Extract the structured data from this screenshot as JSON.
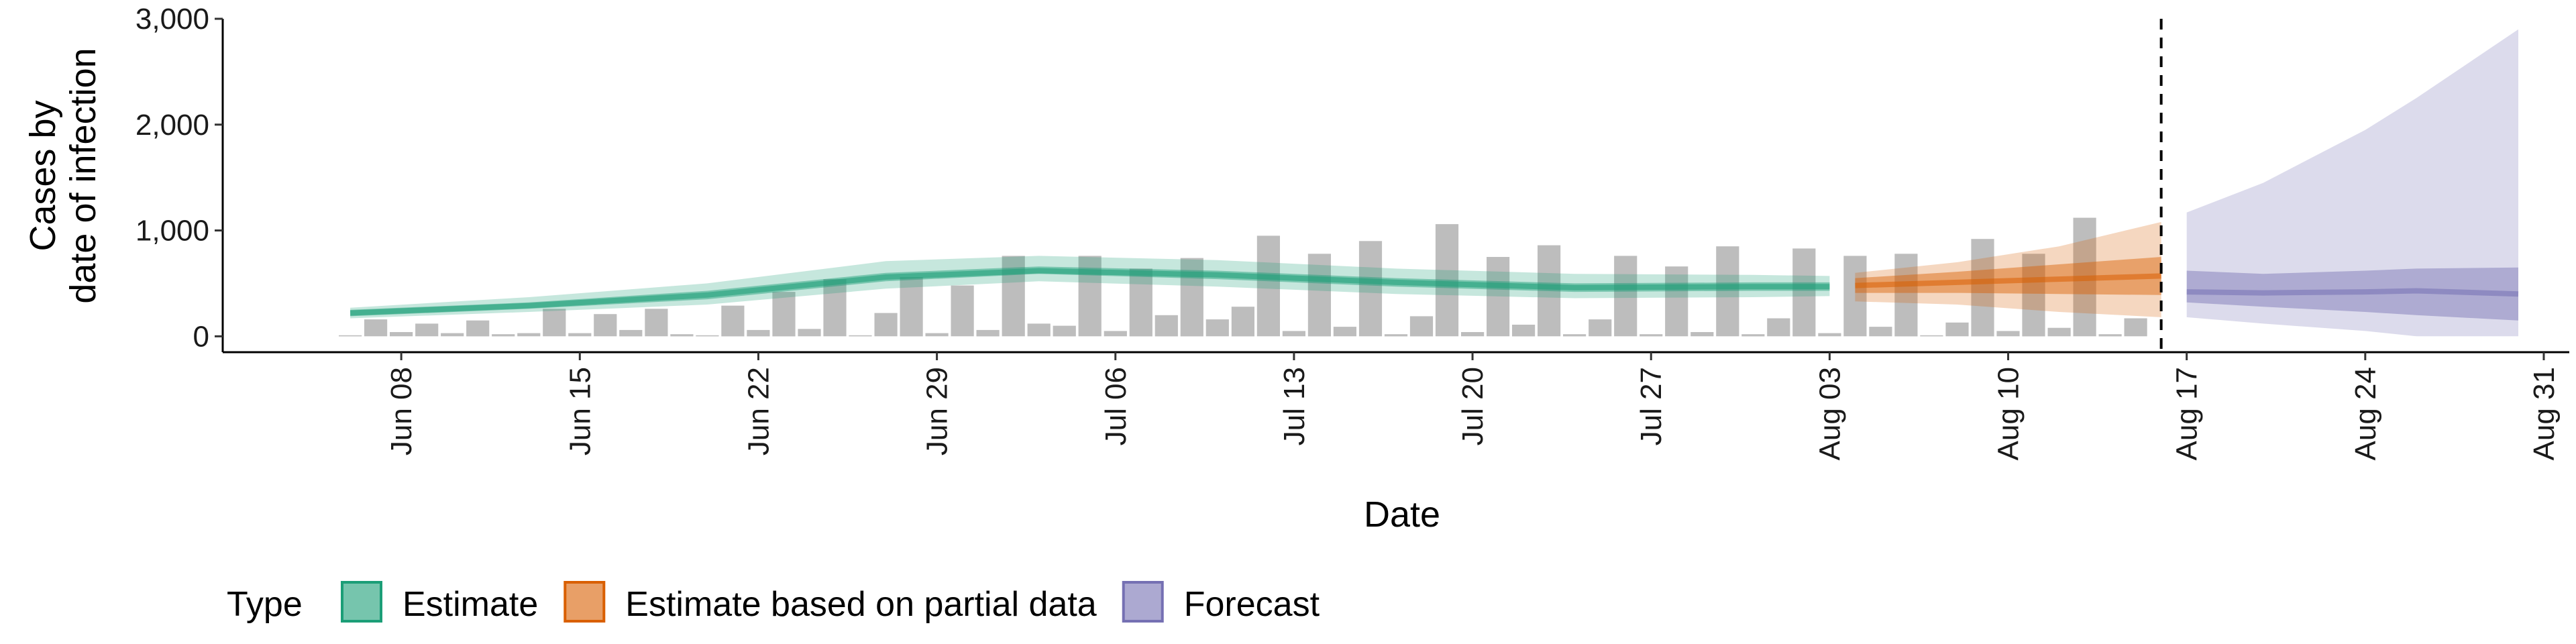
{
  "chart_data": {
    "type": "bar+area",
    "xlabel": "Date",
    "ylabel_lines": [
      "Cases by",
      "date of infection"
    ],
    "ylim": [
      -150,
      3000
    ],
    "yticks": [
      0,
      1000,
      2000,
      3000
    ],
    "ytick_labels": [
      "0",
      "1,000",
      "2,000",
      "3,000"
    ],
    "xlim": [
      "2020-06-01",
      "2020-09-01"
    ],
    "xticks": [
      "2020-06-08",
      "2020-06-15",
      "2020-06-22",
      "2020-06-29",
      "2020-07-06",
      "2020-07-13",
      "2020-07-20",
      "2020-07-27",
      "2020-08-03",
      "2020-08-10",
      "2020-08-17",
      "2020-08-24",
      "2020-08-31"
    ],
    "xtick_labels": [
      "Jun 08",
      "Jun 15",
      "Jun 22",
      "Jun 29",
      "Jul 06",
      "Jul 13",
      "Jul 20",
      "Jul 27",
      "Aug 03",
      "Aug 10",
      "Aug 17",
      "Aug 24",
      "Aug 31"
    ],
    "forecast_cutoff": "2020-08-16",
    "bar_color": "#bdbdbd",
    "reported_cases": {
      "start_date": "2020-06-06",
      "values": [
        10,
        160,
        40,
        120,
        30,
        150,
        20,
        30,
        260,
        30,
        210,
        60,
        260,
        20,
        10,
        290,
        60,
        420,
        70,
        540,
        10,
        220,
        560,
        30,
        480,
        60,
        760,
        120,
        100,
        760,
        50,
        640,
        200,
        740,
        160,
        280,
        950,
        50,
        780,
        90,
        900,
        20,
        190,
        1060,
        40,
        750,
        110,
        860,
        20,
        160,
        760,
        20,
        660,
        40,
        850,
        20,
        170,
        830,
        30,
        760,
        90,
        780,
        10,
        130,
        920,
        50,
        780,
        80,
        1120,
        20,
        170
      ]
    },
    "series": [
      {
        "name": "Estimate",
        "color": "#1b9e77",
        "dates": [
          "2020-06-06",
          "2020-06-13",
          "2020-06-20",
          "2020-06-27",
          "2020-07-03",
          "2020-07-10",
          "2020-07-17",
          "2020-07-24",
          "2020-07-31",
          "2020-08-03"
        ],
        "median": [
          220,
          290,
          390,
          560,
          620,
          580,
          510,
          460,
          470,
          470
        ],
        "lower50": [
          190,
          260,
          350,
          520,
          590,
          540,
          470,
          420,
          430,
          430
        ],
        "upper50": [
          250,
          320,
          430,
          600,
          660,
          620,
          550,
          500,
          510,
          510
        ],
        "lower90": [
          170,
          230,
          300,
          450,
          520,
          470,
          400,
          360,
          370,
          380
        ],
        "upper90": [
          270,
          370,
          500,
          710,
          760,
          720,
          640,
          590,
          580,
          570
        ]
      },
      {
        "name": "Estimate based on partial data",
        "color": "#d95f02",
        "dates": [
          "2020-08-04",
          "2020-08-08",
          "2020-08-12",
          "2020-08-16"
        ],
        "median": [
          480,
          510,
          540,
          570
        ],
        "lower50": [
          410,
          410,
          400,
          390
        ],
        "upper50": [
          550,
          610,
          680,
          750
        ],
        "lower90": [
          330,
          300,
          230,
          180
        ],
        "upper90": [
          600,
          700,
          850,
          1080
        ]
      },
      {
        "name": "Forecast",
        "color": "#7570b3",
        "dates": [
          "2020-08-17",
          "2020-08-20",
          "2020-08-24",
          "2020-08-26",
          "2020-08-30"
        ],
        "median": [
          420,
          410,
          420,
          430,
          400
        ],
        "lower50": [
          320,
          280,
          230,
          200,
          150
        ],
        "upper50": [
          620,
          590,
          620,
          640,
          650
        ],
        "lower90": [
          180,
          120,
          50,
          0,
          0
        ],
        "upper90": [
          1170,
          1450,
          1950,
          2250,
          2900
        ]
      }
    ],
    "legend": {
      "title": "Type",
      "position": "bottom",
      "items": [
        "Estimate",
        "Estimate based on partial data",
        "Forecast"
      ]
    },
    "grid": false
  }
}
